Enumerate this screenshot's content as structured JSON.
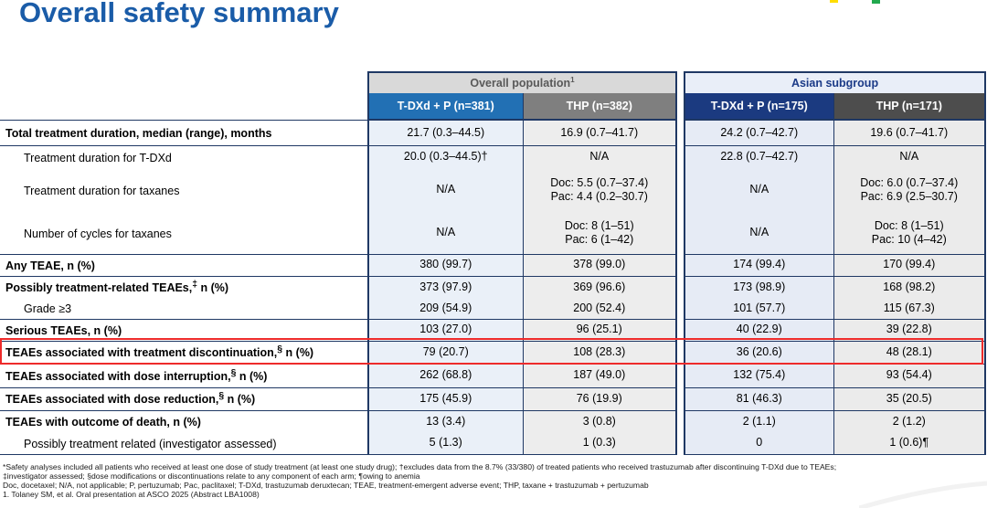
{
  "title": "Overall safety summary",
  "colors": {
    "title_blue": "#1A5CA8",
    "navy": "#1F3864",
    "overall_hdr_bg": "#D9D9D9",
    "overall_hdr_text": "#595959",
    "asian_hdr_bg": "#E9EEF8",
    "asian_hdr_text": "#1B3A87",
    "col_tdxd_o": "#2270B4",
    "col_thp_o": "#7F7F7F",
    "col_tdxd_a": "#1B3A80",
    "col_thp_a": "#4D4D4D",
    "cell_tdxd_o": "#EAF0F8",
    "cell_thp_o": "#EDEDED",
    "cell_tdxd_a": "#E6EBF5",
    "cell_thp_a": "#EBEBEB",
    "red": "#EE2B2B",
    "logo_yellow": "#FFDD00",
    "logo_green": "#22A94E"
  },
  "table": {
    "groups": [
      {
        "label": "Overall population",
        "sup": "1",
        "columns": [
          "T-DXd + P (n=381)",
          "THP (n=382)"
        ]
      },
      {
        "label": "Asian subgroup",
        "sup": "",
        "columns": [
          "T-DXd + P (n=175)",
          "THP (n=171)"
        ]
      }
    ],
    "rows": [
      {
        "pre": "Total treatment duration, median (range), months",
        "sup": "",
        "post": "",
        "bold": true,
        "indent": false,
        "section_end": true,
        "highlight": false,
        "values": [
          "21.7 (0.3–44.5)",
          "16.9 (0.7–41.7)",
          "24.2 (0.7–42.7)",
          "19.6 (0.7–41.7)"
        ]
      },
      {
        "pre": "Treatment duration for T-DXd",
        "sup": "",
        "post": "",
        "bold": false,
        "indent": true,
        "section_end": false,
        "highlight": false,
        "values": [
          "20.0 (0.3–44.5)†",
          "N/A",
          "22.8 (0.7–42.7)",
          "N/A"
        ]
      },
      {
        "pre": "Treatment duration for taxanes",
        "sup": "",
        "post": "",
        "bold": false,
        "indent": true,
        "section_end": false,
        "highlight": false,
        "values": [
          "N/A",
          "Doc: 5.5 (0.7–37.4)\nPac: 4.4 (0.2–30.7)",
          "N/A",
          "Doc: 6.0 (0.7–37.4)\nPac: 6.9 (2.5–30.7)"
        ]
      },
      {
        "pre": "Number of cycles for taxanes",
        "sup": "",
        "post": "",
        "bold": false,
        "indent": true,
        "section_end": true,
        "highlight": false,
        "values": [
          "N/A",
          "Doc: 8 (1–51)\nPac: 6 (1–42)",
          "N/A",
          "Doc: 8 (1–51)\nPac: 10 (4–42)"
        ]
      },
      {
        "pre": "Any TEAE, n (%)",
        "sup": "",
        "post": "",
        "bold": true,
        "indent": false,
        "section_end": true,
        "highlight": false,
        "values": [
          "380 (99.7)",
          "378 (99.0)",
          "174 (99.4)",
          "170 (99.4)"
        ]
      },
      {
        "pre": "Possibly treatment-related TEAEs,",
        "sup": "‡",
        "post": " n (%)",
        "bold": true,
        "indent": false,
        "section_end": false,
        "highlight": false,
        "values": [
          "373 (97.9)",
          "369 (96.6)",
          "173 (98.9)",
          "168 (98.2)"
        ]
      },
      {
        "pre": "Grade ≥3",
        "sup": "",
        "post": "",
        "bold": false,
        "indent": true,
        "section_end": true,
        "highlight": false,
        "values": [
          "209 (54.9)",
          "200 (52.4)",
          "101 (57.7)",
          "115 (67.3)"
        ]
      },
      {
        "pre": "Serious TEAEs, n (%)",
        "sup": "",
        "post": "",
        "bold": true,
        "indent": false,
        "section_end": true,
        "highlight": false,
        "values": [
          "103 (27.0)",
          "96 (25.1)",
          "40 (22.9)",
          "39 (22.8)"
        ]
      },
      {
        "pre": "TEAEs associated with treatment discontinuation,",
        "sup": "§",
        "post": " n (%)",
        "bold": true,
        "indent": false,
        "section_end": true,
        "highlight": true,
        "values": [
          "79 (20.7)",
          "108 (28.3)",
          "36 (20.6)",
          "48 (28.1)"
        ]
      },
      {
        "pre": "TEAEs associated with dose interruption,",
        "sup": "§",
        "post": " n (%)",
        "bold": true,
        "indent": false,
        "section_end": true,
        "highlight": false,
        "values": [
          "262 (68.8)",
          "187 (49.0)",
          "132 (75.4)",
          "93 (54.4)"
        ]
      },
      {
        "pre": "TEAEs associated with dose reduction,",
        "sup": "§",
        "post": " n (%)",
        "bold": true,
        "indent": false,
        "section_end": true,
        "highlight": false,
        "values": [
          "175 (45.9)",
          "76 (19.9)",
          "81 (46.3)",
          "35 (20.5)"
        ]
      },
      {
        "pre": "TEAEs with outcome of death, n (%)",
        "sup": "",
        "post": "",
        "bold": true,
        "indent": false,
        "section_end": false,
        "highlight": false,
        "values": [
          "13 (3.4)",
          "3 (0.8)",
          "2 (1.1)",
          "2 (1.2)"
        ]
      },
      {
        "pre": "Possibly treatment related (investigator assessed)",
        "sup": "",
        "post": "",
        "bold": false,
        "indent": true,
        "section_end": true,
        "highlight": false,
        "values": [
          "5 (1.3)",
          "1 (0.3)",
          "0",
          "1 (0.6)¶"
        ]
      }
    ]
  },
  "footnotes": [
    "*Safety analyses included all patients who received at least one dose of study treatment (at least one study drug); †excludes data from the 8.7% (33/380) of treated patients who received trastuzumab after discontinuing T-DXd due to TEAEs;",
    "‡investigator assessed; §dose modifications or discontinuations relate to any component of each arm; ¶owing to anemia",
    "Doc, docetaxel; N/A, not applicable; P, pertuzumab; Pac, paclitaxel; T-DXd, trastuzumab deruxtecan; TEAE, treatment-emergent adverse event; THP, taxane + trastuzumab + pertuzumab",
    "1. Tolaney SM, et al. Oral presentation at ASCO 2025 (Abstract LBA1008)"
  ]
}
